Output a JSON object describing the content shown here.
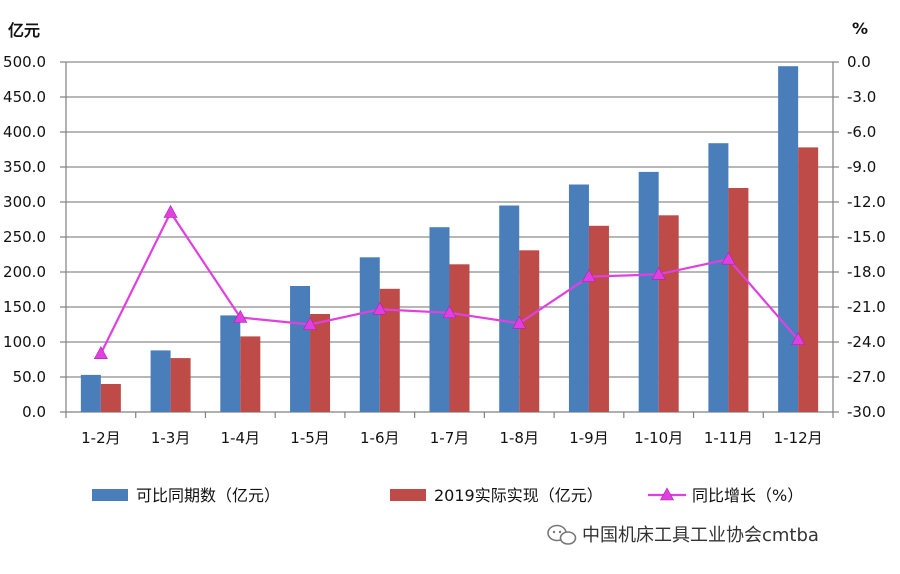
{
  "chart_data": {
    "type": "bar",
    "left_unit": "亿元",
    "right_unit": "%",
    "categories": [
      "1-2月",
      "1-3月",
      "1-4月",
      "1-5月",
      "1-6月",
      "1-7月",
      "1-8月",
      "1-9月",
      "1-10月",
      "1-11月",
      "1-12月"
    ],
    "y_left": {
      "min": 0,
      "max": 500,
      "step": 50,
      "tick_labels": [
        "0.0",
        "50.0",
        "100.0",
        "150.0",
        "200.0",
        "250.0",
        "300.0",
        "350.0",
        "400.0",
        "450.0",
        "500.0"
      ]
    },
    "y_right": {
      "min": -30,
      "max": 0,
      "step": 3,
      "tick_labels": [
        "-30.0",
        "-27.0",
        "-24.0",
        "-21.0",
        "-18.0",
        "-15.0",
        "-12.0",
        "-9.0",
        "-6.0",
        "-3.0",
        "0.0"
      ]
    },
    "series": [
      {
        "name": "可比同期数（亿元）",
        "type": "bar",
        "axis": "left",
        "color": "#4a7ebb",
        "values": [
          53,
          88,
          138,
          180,
          221,
          264,
          295,
          325,
          343,
          384,
          494
        ]
      },
      {
        "name": "2019实际实现（亿元）",
        "type": "bar",
        "axis": "left",
        "color": "#be4b48",
        "values": [
          40,
          77,
          108,
          140,
          176,
          211,
          231,
          266,
          281,
          320,
          378
        ]
      },
      {
        "name": "同比增长（%）",
        "type": "line",
        "axis": "right",
        "color": "#e040e0",
        "values": [
          -25.0,
          -12.9,
          -21.9,
          -22.5,
          -21.2,
          -21.5,
          -22.4,
          -18.4,
          -18.2,
          -16.9,
          -23.8
        ]
      }
    ],
    "grid": true,
    "legend_position": "bottom"
  },
  "watermark": {
    "text": "中国机床工具工业协会cmtba",
    "icon": "wechat-icon"
  }
}
